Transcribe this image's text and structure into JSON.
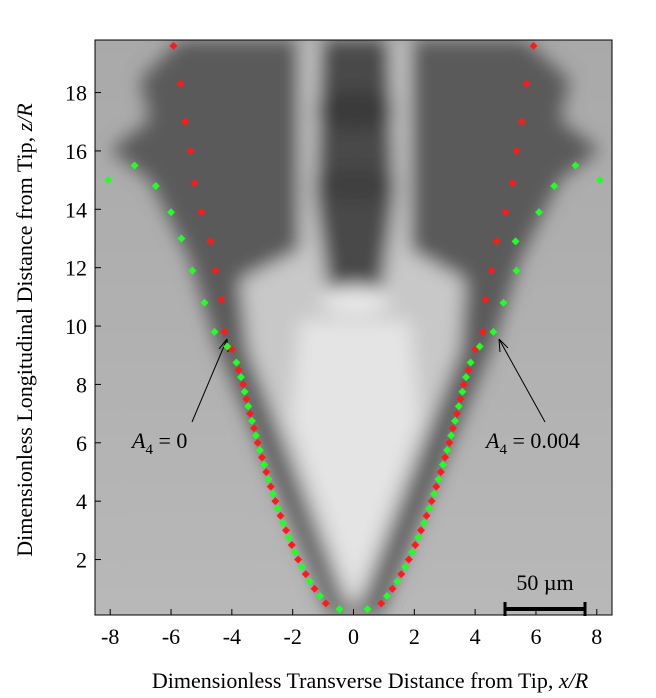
{
  "chart_data": {
    "type": "scatter",
    "xlabel": {
      "text": "Dimensionless Transverse Distance from Tip, ",
      "variable": "x/R"
    },
    "ylabel": {
      "text": "Dimensionless Longitudinal Distance from Tip, ",
      "variable": "z/R"
    },
    "xlim": [
      -8.5,
      8.5
    ],
    "ylim": [
      0.1,
      19.8
    ],
    "xticks": [
      -8,
      -6,
      -4,
      -2,
      0,
      2,
      4,
      6,
      8
    ],
    "yticks": [
      2,
      4,
      6,
      8,
      10,
      12,
      14,
      16,
      18
    ],
    "series": [
      {
        "color": "#ff1a1a",
        "x": [
          -5.92,
          -5.69,
          -5.53,
          -5.36,
          -5.23,
          -5.0,
          -4.7,
          -4.54,
          -4.34,
          -4.25,
          -4.0,
          -3.78,
          -3.63,
          -3.52,
          -3.4,
          -3.27,
          -3.15,
          -3.01,
          -2.87,
          -2.72,
          -2.57,
          -2.4,
          -2.22,
          -2.03,
          -1.82,
          -1.57,
          -1.28,
          -0.91,
          0.91,
          1.28,
          1.57,
          1.82,
          2.03,
          2.22,
          2.4,
          2.57,
          2.72,
          2.87,
          3.01,
          3.15,
          3.27,
          3.4,
          3.52,
          3.63,
          3.78,
          4.0,
          4.25,
          4.34,
          4.54,
          4.7,
          5.0,
          5.23,
          5.36,
          5.53,
          5.69,
          5.92
        ],
        "values": [
          19.6,
          18.3,
          17.0,
          16.0,
          14.9,
          13.9,
          12.9,
          11.9,
          10.9,
          9.8,
          9.2,
          8.5,
          8.0,
          7.5,
          7.0,
          6.5,
          6.0,
          5.5,
          5.0,
          4.5,
          4.0,
          3.5,
          3.0,
          2.5,
          2.0,
          1.5,
          1.0,
          0.5,
          0.5,
          1.0,
          1.5,
          2.0,
          2.5,
          3.0,
          3.5,
          4.0,
          4.5,
          5.0,
          5.5,
          6.0,
          6.5,
          7.0,
          7.5,
          8.0,
          8.5,
          9.2,
          9.8,
          10.9,
          11.9,
          12.9,
          13.9,
          14.9,
          16.0,
          17.0,
          18.3,
          19.6
        ]
      },
      {
        "color": "#22ff22",
        "x": [
          -8.06,
          -7.2,
          -6.5,
          -6.0,
          -5.66,
          -5.3,
          -4.9,
          -4.57,
          -4.15,
          -3.85,
          -3.7,
          -3.58,
          -3.46,
          -3.34,
          -3.21,
          -3.08,
          -2.94,
          -2.8,
          -2.65,
          -2.49,
          -2.32,
          -2.13,
          -1.93,
          -1.7,
          -1.44,
          -1.1,
          -0.46,
          0.46,
          1.1,
          1.44,
          1.7,
          1.93,
          2.13,
          2.32,
          2.49,
          2.65,
          2.8,
          2.94,
          3.08,
          3.21,
          3.34,
          3.46,
          3.58,
          3.7,
          3.85,
          4.15,
          4.6,
          4.93,
          5.36,
          5.33,
          6.1,
          6.6,
          7.3,
          8.1
        ],
        "values": [
          15.0,
          15.5,
          14.8,
          13.9,
          13.0,
          11.9,
          10.8,
          9.8,
          9.3,
          8.75,
          8.25,
          7.75,
          7.25,
          6.75,
          6.25,
          5.75,
          5.25,
          4.75,
          4.25,
          3.75,
          3.25,
          2.75,
          2.25,
          1.75,
          1.25,
          0.75,
          0.3,
          0.3,
          0.75,
          1.25,
          1.75,
          2.25,
          2.75,
          3.25,
          3.75,
          4.25,
          4.75,
          5.25,
          5.75,
          6.25,
          6.75,
          7.25,
          7.75,
          8.25,
          8.75,
          9.3,
          9.8,
          10.8,
          11.9,
          12.9,
          13.9,
          14.8,
          15.5,
          15.0
        ]
      }
    ],
    "annotations": [
      {
        "symbol": "A",
        "subscript": "4",
        "text": " = 0"
      },
      {
        "symbol": "A",
        "subscript": "4",
        "text": " = 0.004"
      }
    ],
    "scale_bar": "50 µm"
  }
}
